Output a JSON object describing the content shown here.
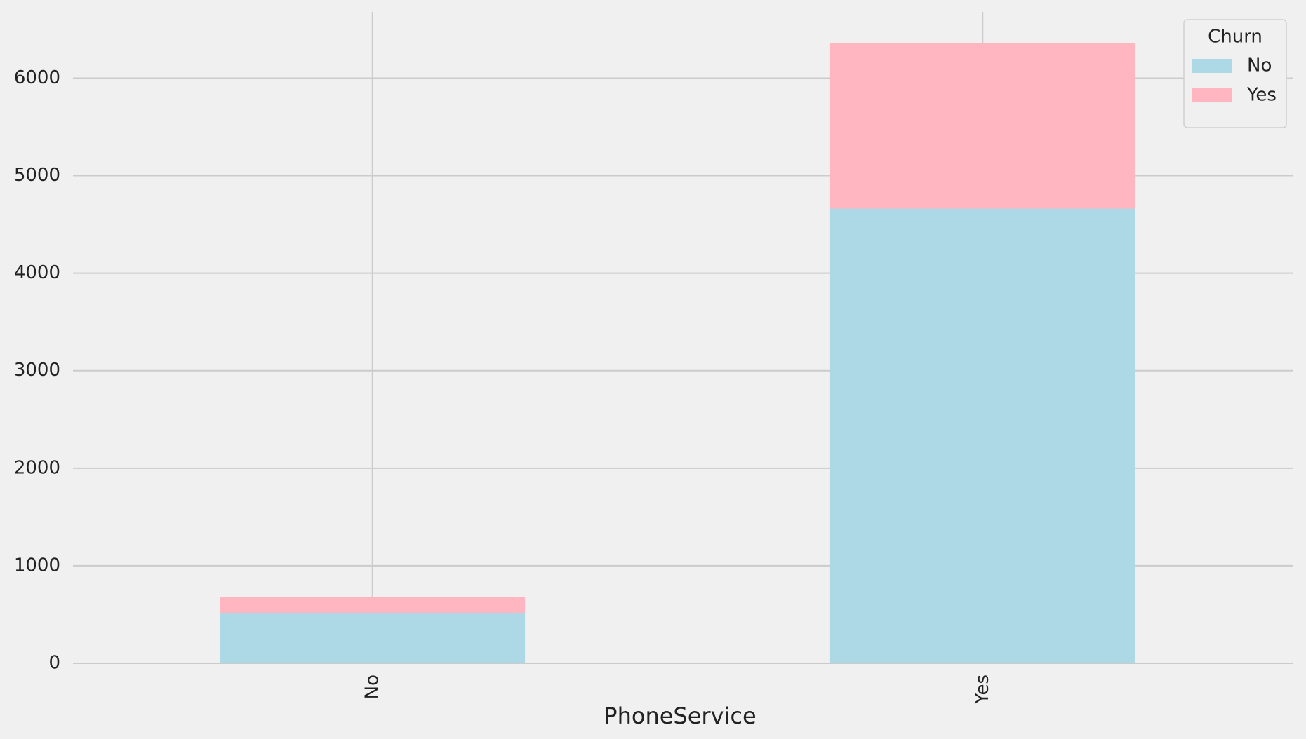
{
  "chart_data": {
    "type": "stacked_bar",
    "x_label": "PhoneService",
    "categories": [
      "No",
      "Yes"
    ],
    "series": [
      {
        "name": "No",
        "color": "#add8e6",
        "values": [
          512,
          4662
        ]
      },
      {
        "name": "Yes",
        "color": "#ffb6c1",
        "values": [
          170,
          1699
        ]
      }
    ],
    "ylim": [
      0,
      6679
    ],
    "yticks": [
      0,
      1000,
      2000,
      3000,
      4000,
      5000,
      6000
    ],
    "grid": true,
    "legend_title": "Churn",
    "legend_position": "upper-right"
  }
}
